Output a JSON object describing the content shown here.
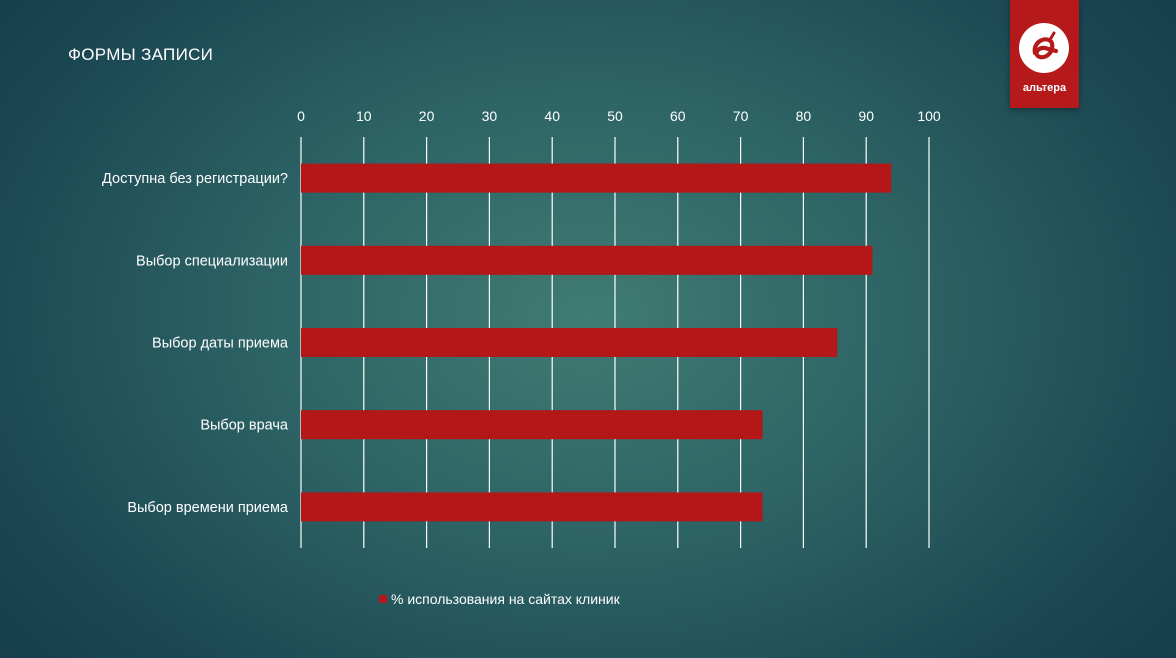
{
  "slide": {
    "title": "ФОРМЫ ЗАПИСИ"
  },
  "logo": {
    "text": "альтера",
    "background_color": "#b5191a"
  },
  "chart_data": {
    "type": "bar",
    "orientation": "horizontal",
    "categories": [
      "Доступна без регистрации?",
      "Выбор специализации",
      "Выбор даты приема",
      "Выбор врача",
      "Выбор времени приема"
    ],
    "series": [
      {
        "name": "% использования на сайтах клиник",
        "values": [
          94,
          91,
          85.4,
          73.5,
          73.5
        ],
        "color": "#b31717"
      }
    ],
    "xlim": [
      0,
      100
    ],
    "x_ticks": [
      "0",
      "10",
      "20",
      "30",
      "40",
      "50",
      "60",
      "70",
      "80",
      "90",
      "100"
    ],
    "x_axis_position": "top",
    "grid": true,
    "legend_position": "bottom"
  }
}
